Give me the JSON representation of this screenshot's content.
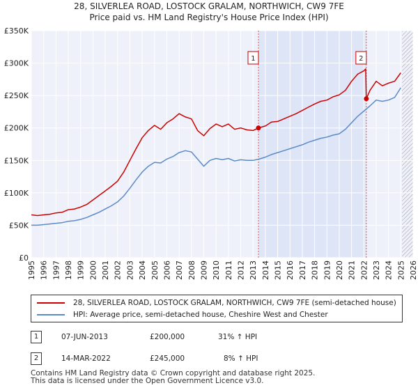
{
  "header": {
    "title": "28, SILVERLEA ROAD, LOSTOCK GRALAM, NORTHWICH, CW9 7FE",
    "subtitle": "Price paid vs. HM Land Registry's House Price Index (HPI)"
  },
  "chart_data": {
    "type": "line",
    "title": "28, SILVERLEA ROAD, LOSTOCK GRALAM, NORTHWICH, CW9 7FE",
    "subtitle": "Price paid vs. HM Land Registry's House Price Index (HPI)",
    "xlabel": "",
    "ylabel": "",
    "xlim": [
      1995,
      2026
    ],
    "ylim": [
      0,
      350000
    ],
    "grid": true,
    "y_ticks": [
      0,
      50000,
      100000,
      150000,
      200000,
      250000,
      300000,
      350000
    ],
    "y_tick_labels": [
      "£0",
      "£50K",
      "£100K",
      "£150K",
      "£200K",
      "£250K",
      "£300K",
      "£350K"
    ],
    "x_ticks": [
      1995,
      1996,
      1997,
      1998,
      1999,
      2000,
      2001,
      2002,
      2003,
      2004,
      2005,
      2006,
      2007,
      2008,
      2009,
      2010,
      2011,
      2012,
      2013,
      2014,
      2015,
      2016,
      2017,
      2018,
      2019,
      2020,
      2021,
      2022,
      2023,
      2024,
      2025,
      2026
    ],
    "x_tick_labels": [
      "1995",
      "1996",
      "1997",
      "1998",
      "1999",
      "2000",
      "2001",
      "2002",
      "2003",
      "2004",
      "2005",
      "2006",
      "2007",
      "2008",
      "2009",
      "2010",
      "2011",
      "2012",
      "2013",
      "2014",
      "2015",
      "2016",
      "2017",
      "2018",
      "2019",
      "2020",
      "2021",
      "2022",
      "2023",
      "2024",
      "2025",
      "2026"
    ],
    "shaded_region": {
      "x": [
        2013.44,
        2022.2
      ],
      "color": "#dde5f7"
    },
    "future_hatch_from": 2025.1,
    "series": [
      {
        "name": "28, SILVERLEA ROAD, LOSTOCK GRALAM, NORTHWICH, CW9 7FE (semi-detached house)",
        "color": "#cc0000",
        "x": [
          1995.0,
          1995.5,
          1996.0,
          1996.5,
          1997.0,
          1997.5,
          1998.0,
          1998.5,
          1999.0,
          1999.5,
          2000.0,
          2000.5,
          2001.0,
          2001.5,
          2002.0,
          2002.5,
          2003.0,
          2003.5,
          2004.0,
          2004.5,
          2005.0,
          2005.5,
          2006.0,
          2006.5,
          2007.0,
          2007.5,
          2008.0,
          2008.5,
          2009.0,
          2009.5,
          2010.0,
          2010.5,
          2011.0,
          2011.5,
          2012.0,
          2012.5,
          2013.0,
          2013.44,
          2014.0,
          2014.5,
          2015.0,
          2015.5,
          2016.0,
          2016.5,
          2017.0,
          2017.5,
          2018.0,
          2018.5,
          2019.0,
          2019.5,
          2020.0,
          2020.5,
          2021.0,
          2021.5,
          2022.0,
          2022.15,
          2022.2,
          2022.5,
          2023.0,
          2023.5,
          2024.0,
          2024.5,
          2025.0
        ],
        "values": [
          66000,
          65000,
          66000,
          67000,
          69000,
          70000,
          74000,
          75000,
          78000,
          82000,
          89000,
          96000,
          103000,
          110000,
          118000,
          132000,
          150000,
          168000,
          185000,
          196000,
          204000,
          198000,
          208000,
          214000,
          222000,
          217000,
          214000,
          196000,
          188000,
          199000,
          206000,
          202000,
          206000,
          198000,
          200000,
          197000,
          196000,
          200000,
          203000,
          209000,
          210000,
          214000,
          218000,
          222000,
          227000,
          232000,
          237000,
          241000,
          243000,
          248000,
          251000,
          258000,
          272000,
          283000,
          288000,
          291000,
          245000,
          258000,
          272000,
          265000,
          269000,
          272000,
          285000
        ]
      },
      {
        "name": "HPI: Average price, semi-detached house, Cheshire West and Chester",
        "color": "#5b8ac8",
        "x": [
          1995.0,
          1995.5,
          1996.0,
          1996.5,
          1997.0,
          1997.5,
          1998.0,
          1998.5,
          1999.0,
          1999.5,
          2000.0,
          2000.5,
          2001.0,
          2001.5,
          2002.0,
          2002.5,
          2003.0,
          2003.5,
          2004.0,
          2004.5,
          2005.0,
          2005.5,
          2006.0,
          2006.5,
          2007.0,
          2007.5,
          2008.0,
          2008.5,
          2009.0,
          2009.5,
          2010.0,
          2010.5,
          2011.0,
          2011.5,
          2012.0,
          2012.5,
          2013.0,
          2013.5,
          2014.0,
          2014.5,
          2015.0,
          2015.5,
          2016.0,
          2016.5,
          2017.0,
          2017.5,
          2018.0,
          2018.5,
          2019.0,
          2019.5,
          2020.0,
          2020.5,
          2021.0,
          2021.5,
          2022.0,
          2022.5,
          2023.0,
          2023.5,
          2024.0,
          2024.5,
          2025.0
        ],
        "values": [
          50000,
          50000,
          51000,
          52000,
          53000,
          54000,
          56000,
          57000,
          59000,
          62000,
          66000,
          70000,
          75000,
          80000,
          86000,
          95000,
          107000,
          120000,
          132000,
          141000,
          147000,
          146000,
          152000,
          156000,
          162000,
          165000,
          163000,
          152000,
          141000,
          150000,
          153000,
          151000,
          153000,
          149000,
          151000,
          150000,
          150000,
          152000,
          155000,
          159000,
          162000,
          165000,
          168000,
          171000,
          174000,
          178000,
          181000,
          184000,
          186000,
          189000,
          191000,
          198000,
          208000,
          218000,
          226000,
          234000,
          243000,
          241000,
          243000,
          247000,
          262000
        ]
      }
    ],
    "annotations": [
      {
        "label": "1",
        "x": 2013.44,
        "y": 200000
      },
      {
        "label": "2",
        "x": 2022.2,
        "y": 245000
      }
    ]
  },
  "legend": {
    "items": [
      {
        "label": "28, SILVERLEA ROAD, LOSTOCK GRALAM, NORTHWICH, CW9 7FE (semi-detached house)",
        "color": "#cc0000"
      },
      {
        "label": "HPI: Average price, semi-detached house, Cheshire West and Chester",
        "color": "#5b8ac8"
      }
    ]
  },
  "sales": [
    {
      "num": "1",
      "date": "07-JUN-2013",
      "price": "£200,000",
      "hpi": "31% ↑ HPI"
    },
    {
      "num": "2",
      "date": "14-MAR-2022",
      "price": "£245,000",
      "hpi": "8% ↑ HPI"
    }
  ],
  "footer": {
    "line1": "Contains HM Land Registry data © Crown copyright and database right 2025.",
    "line2": "This data is licensed under the Open Government Licence v3.0."
  }
}
